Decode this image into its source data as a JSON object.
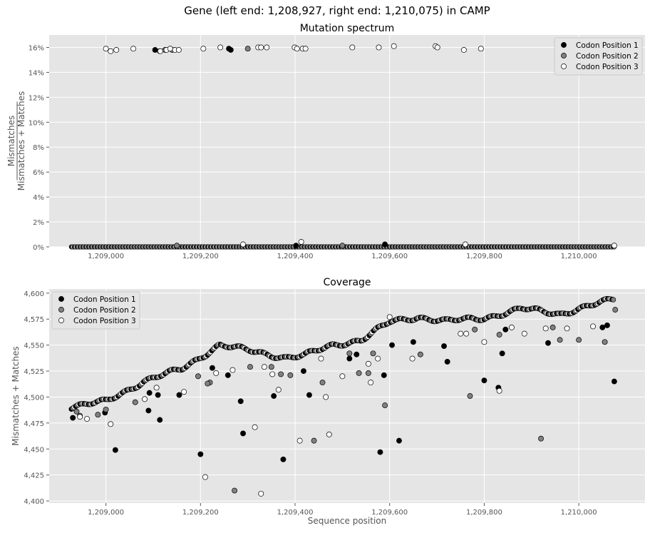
{
  "figure": {
    "suptitle": "Gene (left end: 1,208,927, right end: 1,210,075) in CAMP"
  },
  "colors": {
    "panel_bg": "#E5E5E5",
    "grid": "#FFFFFF",
    "codon1": "#000000",
    "codon2": "#808080",
    "codon3": "#FFFFFF",
    "marker_edge": "#000000",
    "tick_text": "#555555"
  },
  "chart_data": [
    {
      "type": "scatter",
      "title": "Mutation spectrum",
      "ylabel_numerator": "Mismatches",
      "ylabel_denominator": "Mismatches + Matches",
      "xlabel": "",
      "xlim": [
        1208880,
        1210140
      ],
      "ylim": [
        0,
        0.17
      ],
      "x_ticks": [
        1209000,
        1209200,
        1209400,
        1209600,
        1209800,
        1210000
      ],
      "x_tick_labels": [
        "1,209,000",
        "1,209,200",
        "1,209,400",
        "1,209,600",
        "1,209,800",
        "1,210,000"
      ],
      "y_ticks": [
        0,
        0.02,
        0.04,
        0.06,
        0.08,
        0.1,
        0.12,
        0.14,
        0.16
      ],
      "y_tick_labels": [
        "0%",
        "2%",
        "4%",
        "6%",
        "8%",
        "10%",
        "12%",
        "14%",
        "16%"
      ],
      "grid": true,
      "legend_position": "top-right",
      "baseline": {
        "x_start": 1208927,
        "x_end": 1210075,
        "y": 0.0
      },
      "series": [
        {
          "name": "Codon Position 1",
          "points": [
            [
              1209104,
              0.158
            ],
            [
              1209260,
              0.159
            ],
            [
              1209264,
              0.158
            ],
            [
              1209402,
              0.001
            ],
            [
              1209590,
              0.002
            ]
          ]
        },
        {
          "name": "Codon Position 2",
          "points": [
            [
              1209114,
              0.157
            ],
            [
              1209125,
              0.158
            ],
            [
              1209140,
              0.158
            ],
            [
              1209300,
              0.159
            ],
            [
              1209150,
              0.001
            ],
            [
              1209500,
              0.001
            ]
          ]
        },
        {
          "name": "Codon Position 3",
          "points": [
            [
              1209000,
              0.159
            ],
            [
              1209010,
              0.157
            ],
            [
              1209022,
              0.158
            ],
            [
              1209058,
              0.159
            ],
            [
              1209115,
              0.157
            ],
            [
              1209128,
              0.158
            ],
            [
              1209136,
              0.159
            ],
            [
              1209146,
              0.158
            ],
            [
              1209154,
              0.158
            ],
            [
              1209206,
              0.159
            ],
            [
              1209242,
              0.16
            ],
            [
              1209322,
              0.16
            ],
            [
              1209328,
              0.16
            ],
            [
              1209340,
              0.16
            ],
            [
              1209399,
              0.16
            ],
            [
              1209404,
              0.159
            ],
            [
              1209416,
              0.159
            ],
            [
              1209422,
              0.159
            ],
            [
              1209521,
              0.16
            ],
            [
              1209577,
              0.16
            ],
            [
              1209609,
              0.161
            ],
            [
              1209697,
              0.161
            ],
            [
              1209701,
              0.16
            ],
            [
              1209757,
              0.158
            ],
            [
              1209793,
              0.159
            ],
            [
              1209413,
              0.004
            ],
            [
              1209290,
              0.002
            ],
            [
              1209760,
              0.002
            ],
            [
              1210075,
              0.001
            ]
          ]
        }
      ]
    },
    {
      "type": "scatter",
      "title": "Coverage",
      "ylabel": "Mismatches + Matches",
      "xlabel": "Sequence position",
      "xlim": [
        1208880,
        1210140
      ],
      "ylim": [
        4398,
        4604
      ],
      "x_ticks": [
        1209000,
        1209200,
        1209400,
        1209600,
        1209800,
        1210000
      ],
      "x_tick_labels": [
        "1,209,000",
        "1,209,200",
        "1,209,400",
        "1,209,600",
        "1,209,800",
        "1,210,000"
      ],
      "y_ticks": [
        4400,
        4425,
        4450,
        4475,
        4500,
        4525,
        4550,
        4575,
        4600
      ],
      "y_tick_labels": [
        "4,400",
        "4,425",
        "4,450",
        "4,475",
        "4,500",
        "4,525",
        "4,550",
        "4,575",
        "4,600"
      ],
      "grid": true,
      "legend_position": "top-left",
      "trend": [
        [
          1208927,
          4490
        ],
        [
          1209000,
          4496
        ],
        [
          1209080,
          4515
        ],
        [
          1209160,
          4527
        ],
        [
          1209240,
          4550
        ],
        [
          1209300,
          4545
        ],
        [
          1209380,
          4538
        ],
        [
          1209420,
          4540
        ],
        [
          1209480,
          4550
        ],
        [
          1209540,
          4555
        ],
        [
          1209600,
          4572
        ],
        [
          1209660,
          4577
        ],
        [
          1209720,
          4573
        ],
        [
          1209800,
          4576
        ],
        [
          1209880,
          4585
        ],
        [
          1209960,
          4580
        ],
        [
          1210000,
          4585
        ],
        [
          1210075,
          4594
        ]
      ],
      "series": [
        {
          "name": "Codon Position 1",
          "points": [
            [
              1208930,
              4480
            ],
            [
              1208998,
              4485
            ],
            [
              1209020,
              4449
            ],
            [
              1209090,
              4487
            ],
            [
              1209092,
              4504
            ],
            [
              1209114,
              4478
            ],
            [
              1209110,
              4502
            ],
            [
              1209155,
              4502
            ],
            [
              1209200,
              4445
            ],
            [
              1209225,
              4528
            ],
            [
              1209258,
              4521
            ],
            [
              1209285,
              4496
            ],
            [
              1209290,
              4465
            ],
            [
              1209355,
              4501
            ],
            [
              1209375,
              4440
            ],
            [
              1209418,
              4525
            ],
            [
              1209430,
              4502
            ],
            [
              1209515,
              4537
            ],
            [
              1209530,
              4541
            ],
            [
              1209580,
              4447
            ],
            [
              1209588,
              4521
            ],
            [
              1209605,
              4550
            ],
            [
              1209620,
              4458
            ],
            [
              1209650,
              4553
            ],
            [
              1209715,
              4549
            ],
            [
              1209722,
              4534
            ],
            [
              1209800,
              4516
            ],
            [
              1209830,
              4509
            ],
            [
              1209838,
              4542
            ],
            [
              1209845,
              4565
            ],
            [
              1209935,
              4552
            ],
            [
              1210050,
              4567
            ],
            [
              1210060,
              4569
            ],
            [
              1210075,
              4515
            ]
          ]
        },
        {
          "name": "Codon Position 2",
          "points": [
            [
              1208938,
              4486
            ],
            [
              1208945,
              4482
            ],
            [
              1208983,
              4483
            ],
            [
              1209000,
              4488
            ],
            [
              1209062,
              4495
            ],
            [
              1209195,
              4520
            ],
            [
              1209220,
              4514
            ],
            [
              1209215,
              4513
            ],
            [
              1209272,
              4410
            ],
            [
              1209305,
              4529
            ],
            [
              1209350,
              4529
            ],
            [
              1209370,
              4522
            ],
            [
              1209390,
              4521
            ],
            [
              1209440,
              4458
            ],
            [
              1209458,
              4514
            ],
            [
              1209515,
              4542
            ],
            [
              1209535,
              4523
            ],
            [
              1209555,
              4523
            ],
            [
              1209565,
              4542
            ],
            [
              1209590,
              4492
            ],
            [
              1209665,
              4541
            ],
            [
              1209770,
              4501
            ],
            [
              1209780,
              4565
            ],
            [
              1209832,
              4560
            ],
            [
              1209920,
              4460
            ],
            [
              1209945,
              4567
            ],
            [
              1209960,
              4555
            ],
            [
              1210000,
              4555
            ],
            [
              1210055,
              4553
            ],
            [
              1210077,
              4584
            ]
          ]
        },
        {
          "name": "Codon Position 3",
          "points": [
            [
              1208945,
              4481
            ],
            [
              1208960,
              4479
            ],
            [
              1209010,
              4474
            ],
            [
              1209082,
              4498
            ],
            [
              1209107,
              4509
            ],
            [
              1209165,
              4505
            ],
            [
              1209210,
              4423
            ],
            [
              1209233,
              4523
            ],
            [
              1209268,
              4526
            ],
            [
              1209315,
              4471
            ],
            [
              1209328,
              4407
            ],
            [
              1209335,
              4529
            ],
            [
              1209352,
              4522
            ],
            [
              1209365,
              4507
            ],
            [
              1209410,
              4458
            ],
            [
              1209455,
              4537
            ],
            [
              1209465,
              4500
            ],
            [
              1209472,
              4464
            ],
            [
              1209500,
              4520
            ],
            [
              1209555,
              4532
            ],
            [
              1209560,
              4514
            ],
            [
              1209575,
              4537
            ],
            [
              1209600,
              4577
            ],
            [
              1209648,
              4537
            ],
            [
              1209750,
              4561
            ],
            [
              1209762,
              4561
            ],
            [
              1209800,
              4553
            ],
            [
              1209832,
              4506
            ],
            [
              1209858,
              4567
            ],
            [
              1209885,
              4561
            ],
            [
              1209930,
              4566
            ],
            [
              1209975,
              4566
            ],
            [
              1210030,
              4568
            ]
          ]
        }
      ]
    }
  ]
}
